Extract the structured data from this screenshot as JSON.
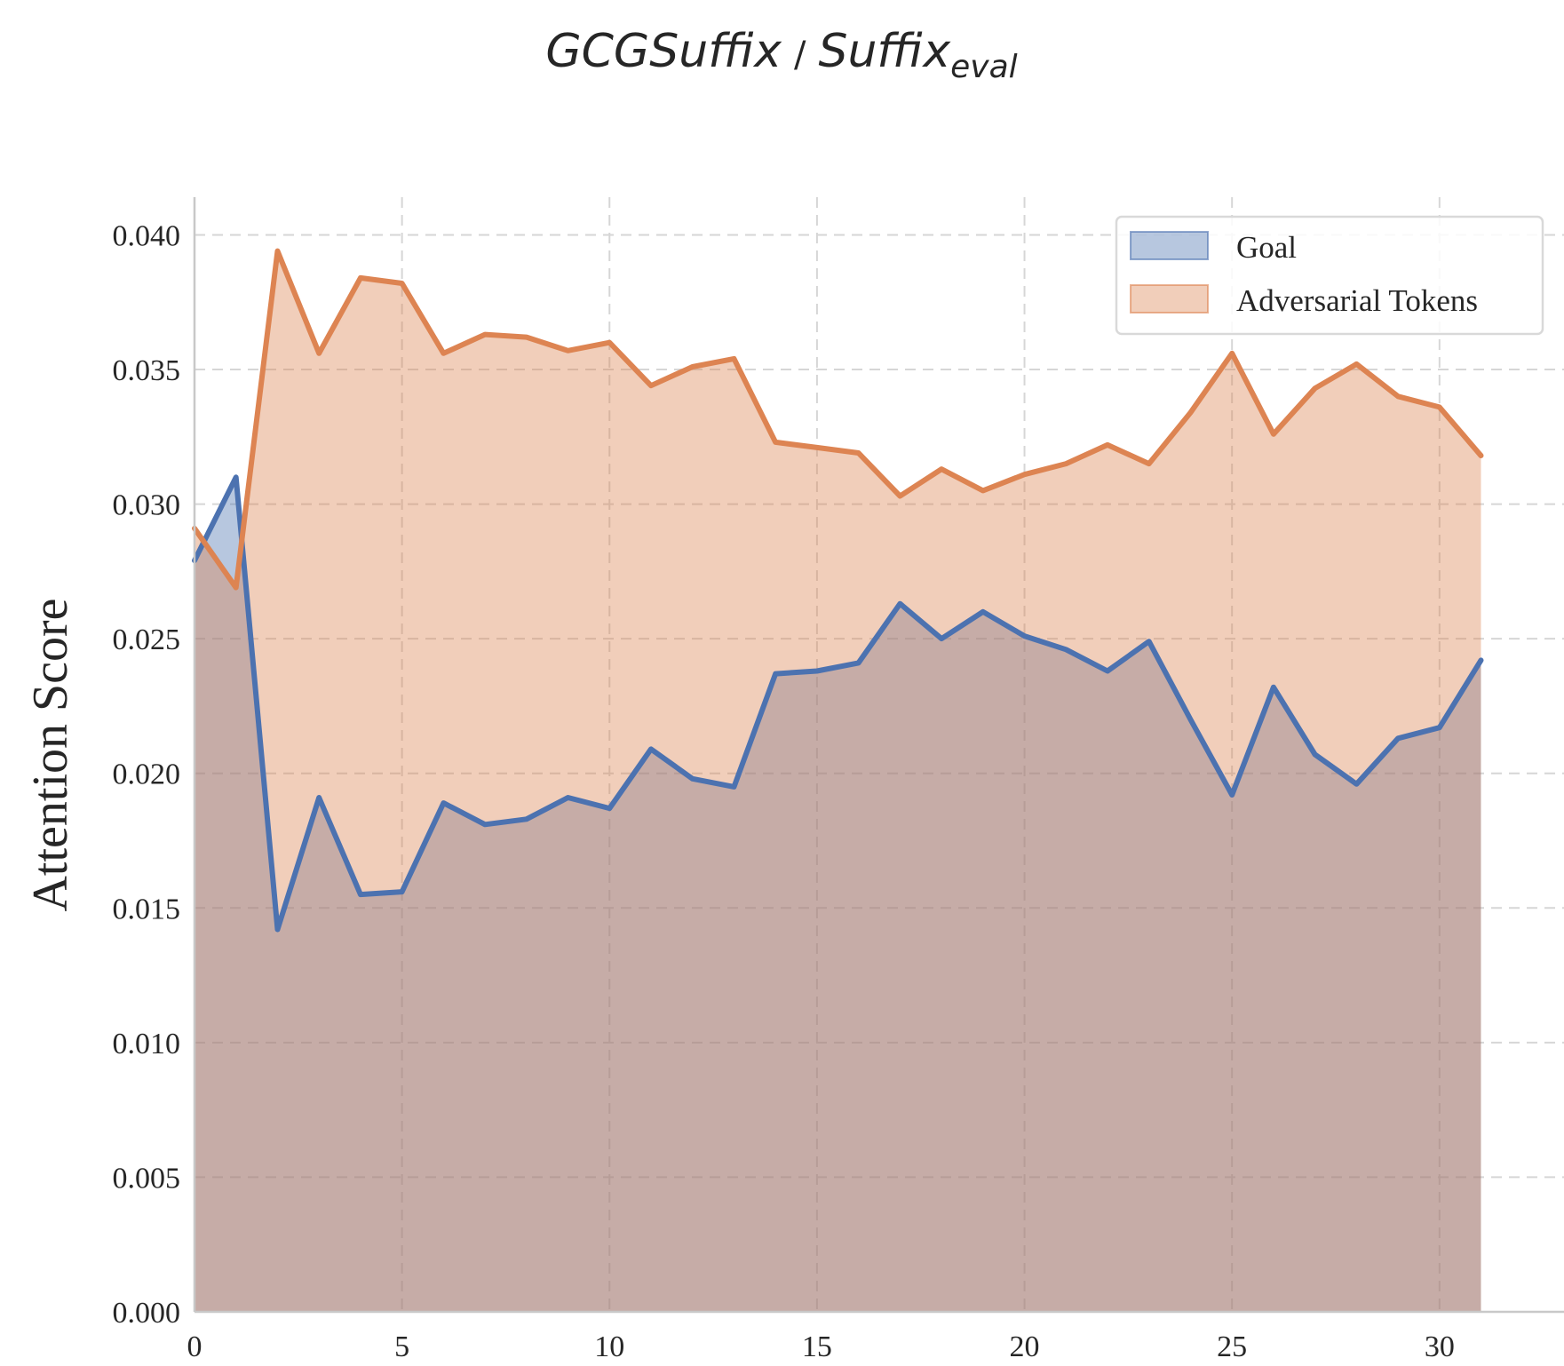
{
  "title": {
    "main": "GCGSuffix",
    "separator": "/",
    "second": "Suffix",
    "second_sub": "eval"
  },
  "chart_data": {
    "type": "area",
    "xlabel": "",
    "ylabel": "Attention Score",
    "xlim": [
      0,
      33
    ],
    "ylim": [
      0,
      0.0414
    ],
    "x_ticks": [
      "0",
      "5",
      "10",
      "15",
      "20",
      "25",
      "30"
    ],
    "y_ticks": [
      "0.000",
      "0.005",
      "0.010",
      "0.015",
      "0.020",
      "0.025",
      "0.030",
      "0.035",
      "0.040"
    ],
    "grid": true,
    "legend_position": "top-right",
    "x": [
      0,
      1,
      2,
      3,
      4,
      5,
      6,
      7,
      8,
      9,
      10,
      11,
      12,
      13,
      14,
      15,
      16,
      17,
      18,
      19,
      20,
      21,
      22,
      23,
      24,
      25,
      26,
      27,
      28,
      29,
      30,
      31
    ],
    "series": [
      {
        "name": "Goal",
        "color": "#4c72b0",
        "fill": "#4c72b0",
        "values": [
          0.0279,
          0.031,
          0.0142,
          0.0191,
          0.0155,
          0.0156,
          0.0189,
          0.0181,
          0.0183,
          0.0191,
          0.0187,
          0.0209,
          0.0198,
          0.0195,
          0.0237,
          0.0238,
          0.0241,
          0.0263,
          0.025,
          0.026,
          0.0251,
          0.0246,
          0.0238,
          0.0249,
          0.022,
          0.0192,
          0.0232,
          0.0207,
          0.0196,
          0.0213,
          0.0217,
          0.0242
        ]
      },
      {
        "name": "Adversarial Tokens",
        "color": "#dd8452",
        "fill": "#dd8452",
        "values": [
          0.0291,
          0.0269,
          0.0394,
          0.0356,
          0.0384,
          0.0382,
          0.0356,
          0.0363,
          0.0362,
          0.0357,
          0.036,
          0.0344,
          0.0351,
          0.0354,
          0.0323,
          0.0321,
          0.0319,
          0.0303,
          0.0313,
          0.0305,
          0.0311,
          0.0315,
          0.0322,
          0.0315,
          0.0334,
          0.0356,
          0.0326,
          0.0343,
          0.0352,
          0.034,
          0.0336,
          0.0318
        ]
      }
    ]
  }
}
